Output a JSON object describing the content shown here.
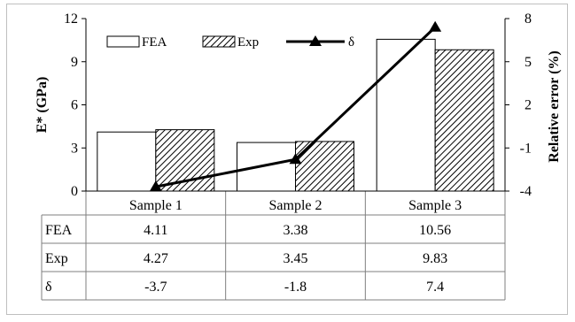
{
  "chart_data": {
    "type": "bar",
    "categories": [
      "Sample 1",
      "Sample 2",
      "Sample 3"
    ],
    "series": [
      {
        "name": "FEA",
        "type": "bar",
        "axis": "left",
        "fill": "#ffffff",
        "pattern": "none",
        "values": [
          4.11,
          3.38,
          10.56
        ],
        "labels": [
          "4.11",
          "3.38",
          "10.56"
        ]
      },
      {
        "name": "Exp",
        "type": "bar",
        "axis": "left",
        "fill": "#ffffff",
        "pattern": "diagonal-hatch",
        "values": [
          4.27,
          3.45,
          9.83
        ],
        "labels": [
          "4.27",
          "3.45",
          "9.83"
        ]
      },
      {
        "name": "δ",
        "type": "line",
        "axis": "right",
        "marker": "triangle",
        "color": "#000000",
        "values": [
          -3.7,
          -1.8,
          7.4
        ],
        "labels": [
          "-3.7",
          "-1.8",
          "7.4"
        ]
      }
    ],
    "ylabel": "E* (GPa)",
    "ylabel_right": "Relative error (%)",
    "ylim": [
      0,
      12
    ],
    "yticks": [
      "0",
      "3",
      "6",
      "9",
      "12"
    ],
    "ylim_right": [
      -4,
      8
    ],
    "yticks_right": [
      "-4",
      "-1",
      "2",
      "5",
      "8"
    ],
    "legend_position": "top-left",
    "grid": false,
    "data_table": true
  }
}
